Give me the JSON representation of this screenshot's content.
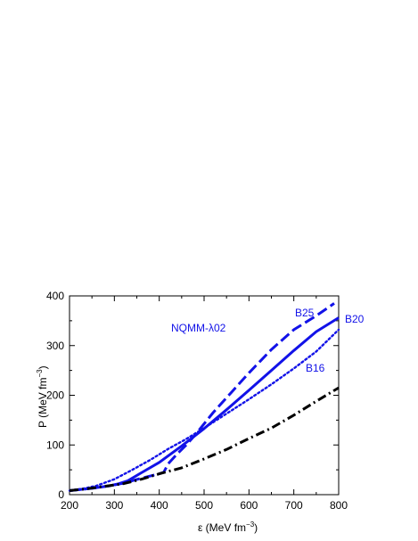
{
  "chart_data": {
    "type": "line",
    "title": "",
    "xlabel": {
      "main": "ε (MeV fm",
      "sup": "−3",
      "end": ")"
    },
    "ylabel": {
      "main": "P (MeV fm",
      "sup": "−3",
      "end": ")"
    },
    "xlim": [
      200,
      800
    ],
    "ylim": [
      0,
      400
    ],
    "x_ticks": [
      200,
      300,
      400,
      500,
      600,
      700,
      800
    ],
    "y_ticks": [
      0,
      100,
      200,
      300,
      400
    ],
    "x_minor_step": 50,
    "y_minor_step": 50,
    "annotation": "NQMM-λ02",
    "colors": {
      "blue": "#1212e8",
      "black": "#000000"
    },
    "series": [
      {
        "name": "B20",
        "style": "solid",
        "color": "#1212e8",
        "points": [
          [
            200,
            8
          ],
          [
            230,
            11
          ],
          [
            260,
            14
          ],
          [
            290,
            18
          ],
          [
            310,
            22
          ],
          [
            330,
            28
          ],
          [
            360,
            44
          ],
          [
            400,
            65
          ],
          [
            450,
            98
          ],
          [
            500,
            133
          ],
          [
            550,
            171
          ],
          [
            600,
            210
          ],
          [
            650,
            250
          ],
          [
            700,
            290
          ],
          [
            750,
            328
          ],
          [
            800,
            356
          ]
        ]
      },
      {
        "name": "B25",
        "style": "dashed",
        "color": "#1212e8",
        "points": [
          [
            200,
            8
          ],
          [
            230,
            11
          ],
          [
            260,
            14
          ],
          [
            290,
            18
          ],
          [
            320,
            23
          ],
          [
            360,
            33
          ],
          [
            400,
            42
          ],
          [
            410,
            45
          ],
          [
            420,
            62
          ],
          [
            440,
            82
          ],
          [
            460,
            100
          ],
          [
            480,
            120
          ],
          [
            520,
            165
          ],
          [
            560,
            205
          ],
          [
            600,
            245
          ],
          [
            650,
            292
          ],
          [
            700,
            332
          ],
          [
            750,
            360
          ],
          [
            790,
            385
          ]
        ]
      },
      {
        "name": "B16",
        "style": "dotted",
        "color": "#1212e8",
        "points": [
          [
            200,
            8
          ],
          [
            230,
            12
          ],
          [
            260,
            18
          ],
          [
            300,
            31
          ],
          [
            340,
            50
          ],
          [
            380,
            70
          ],
          [
            420,
            92
          ],
          [
            460,
            112
          ],
          [
            500,
            134
          ],
          [
            550,
            163
          ],
          [
            600,
            192
          ],
          [
            650,
            222
          ],
          [
            700,
            254
          ],
          [
            750,
            288
          ],
          [
            800,
            332
          ]
        ]
      },
      {
        "name": "",
        "style": "dashdot",
        "color": "#000000",
        "points": [
          [
            200,
            8
          ],
          [
            240,
            12
          ],
          [
            280,
            17
          ],
          [
            320,
            22
          ],
          [
            360,
            31
          ],
          [
            400,
            42
          ],
          [
            450,
            54
          ],
          [
            500,
            72
          ],
          [
            550,
            91
          ],
          [
            600,
            113
          ],
          [
            650,
            134
          ],
          [
            700,
            160
          ],
          [
            750,
            188
          ],
          [
            800,
            215
          ]
        ]
      }
    ]
  }
}
